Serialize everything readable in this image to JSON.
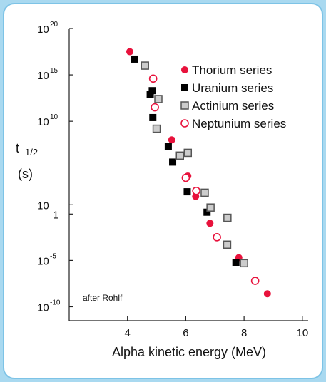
{
  "colors": {
    "background": "#a9d9f0",
    "thorium": "#e8123c",
    "uranium": "#000000",
    "actinium_fill": "#cccccc",
    "actinium_stroke": "#555555",
    "neptunium": "#e8123c"
  },
  "chart_data": {
    "type": "scatter",
    "title": "",
    "xlabel": "Alpha kinetic energy (MeV)",
    "ylabel": [
      "t",
      "1/2",
      "(s)"
    ],
    "xlim": [
      2.0,
      10.2
    ],
    "ylim": [
      -11.5,
      20
    ],
    "y_scale": "log10",
    "grid": false,
    "legend_position": "top-right",
    "annotation": "after Rohlf",
    "x_ticks": [
      {
        "value": 4,
        "label": "4"
      },
      {
        "value": 6,
        "label": "6"
      },
      {
        "value": 8,
        "label": "8"
      },
      {
        "value": 10,
        "label": "10"
      }
    ],
    "y_ticks": [
      {
        "value": 20,
        "base": "10",
        "exp": "20"
      },
      {
        "value": 15,
        "base": "10",
        "exp": "15"
      },
      {
        "value": 10,
        "base": "10",
        "exp": "10"
      },
      {
        "value": 1,
        "base": "10",
        "exp": ""
      },
      {
        "value": 0,
        "base": "1",
        "exp": ""
      },
      {
        "value": -5,
        "base": "10",
        "exp": "-5"
      },
      {
        "value": -10,
        "base": "10",
        "exp": "-10"
      }
    ],
    "series": [
      {
        "name": "Thorium series",
        "marker": "filled-circle",
        "points": [
          [
            4.08,
            17.5
          ],
          [
            5.52,
            8.0
          ],
          [
            6.07,
            4.1
          ],
          [
            6.34,
            1.9
          ],
          [
            6.83,
            -1.0
          ],
          [
            7.82,
            -4.7
          ],
          [
            8.8,
            -8.6
          ]
        ]
      },
      {
        "name": "Uranium series",
        "marker": "filled-square",
        "points": [
          [
            4.25,
            16.7
          ],
          [
            4.78,
            12.9
          ],
          [
            4.85,
            13.3
          ],
          [
            4.87,
            10.4
          ],
          [
            5.4,
            7.3
          ],
          [
            5.55,
            5.6
          ],
          [
            6.05,
            2.4
          ],
          [
            6.73,
            0.2
          ],
          [
            7.72,
            -5.2
          ]
        ]
      },
      {
        "name": "Actinium series",
        "marker": "gray-square",
        "points": [
          [
            4.6,
            16.0
          ],
          [
            5.06,
            12.4
          ],
          [
            5.0,
            9.2
          ],
          [
            5.8,
            6.3
          ],
          [
            6.07,
            6.6
          ],
          [
            6.65,
            2.3
          ],
          [
            6.85,
            0.7
          ],
          [
            7.43,
            -0.4
          ],
          [
            7.42,
            -3.3
          ],
          [
            8.0,
            -5.3
          ]
        ]
      },
      {
        "name": "Neptunium series",
        "marker": "open-circle",
        "points": [
          [
            4.88,
            14.6
          ],
          [
            4.94,
            11.5
          ],
          [
            6.0,
            3.9
          ],
          [
            6.36,
            2.5
          ],
          [
            7.07,
            -2.5
          ],
          [
            8.38,
            -7.2
          ]
        ]
      }
    ]
  }
}
